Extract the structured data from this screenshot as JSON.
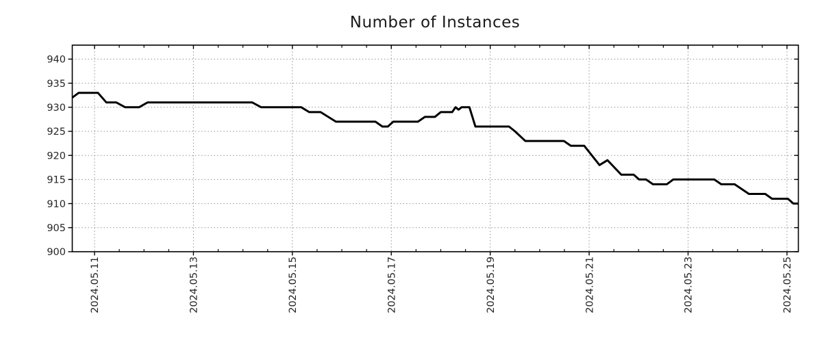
{
  "chart_data": {
    "type": "line",
    "title": "Number of Instances",
    "legend": "none",
    "grid": "dotted",
    "x_axis": {
      "unit": "days since 2024.05.11",
      "tick_labels": [
        "2024.05.11",
        "2024.05.13",
        "2024.05.15",
        "2024.05.17",
        "2024.05.19",
        "2024.05.21",
        "2024.05.23",
        "2024.05.25"
      ],
      "tick_days": [
        0,
        2,
        4,
        6,
        8,
        10,
        12,
        14
      ],
      "minor_tick_interval_days": 0.5,
      "range_days": [
        -0.45,
        14.23
      ]
    },
    "y_axis": {
      "ticks": [
        900,
        905,
        910,
        915,
        920,
        925,
        930,
        935,
        940
      ],
      "range": [
        900,
        942.9
      ]
    },
    "series": [
      {
        "name": "Number of Instances",
        "points_day_value": [
          [
            -0.45,
            932
          ],
          [
            -0.32,
            933
          ],
          [
            0.07,
            933
          ],
          [
            0.24,
            931
          ],
          [
            0.44,
            931
          ],
          [
            0.62,
            930
          ],
          [
            0.9,
            930
          ],
          [
            1.07,
            931
          ],
          [
            3.19,
            931
          ],
          [
            3.37,
            930
          ],
          [
            4.18,
            930
          ],
          [
            4.34,
            929
          ],
          [
            4.57,
            929
          ],
          [
            4.88,
            927
          ],
          [
            5.68,
            927
          ],
          [
            5.82,
            926
          ],
          [
            5.93,
            926
          ],
          [
            6.04,
            927
          ],
          [
            6.54,
            927
          ],
          [
            6.68,
            928
          ],
          [
            6.88,
            928
          ],
          [
            7.0,
            929
          ],
          [
            7.23,
            929
          ],
          [
            7.3,
            930
          ],
          [
            7.36,
            929.5
          ],
          [
            7.42,
            930
          ],
          [
            7.58,
            930
          ],
          [
            7.7,
            926
          ],
          [
            8.38,
            926
          ],
          [
            8.5,
            925
          ],
          [
            8.71,
            923
          ],
          [
            9.49,
            923
          ],
          [
            9.63,
            922
          ],
          [
            9.9,
            922
          ],
          [
            10.21,
            918
          ],
          [
            10.37,
            919
          ],
          [
            10.65,
            916
          ],
          [
            10.9,
            916
          ],
          [
            11.01,
            915
          ],
          [
            11.15,
            915
          ],
          [
            11.29,
            914
          ],
          [
            11.57,
            914
          ],
          [
            11.7,
            915
          ],
          [
            12.53,
            915
          ],
          [
            12.67,
            914
          ],
          [
            12.94,
            914
          ],
          [
            13.23,
            912
          ],
          [
            13.56,
            912
          ],
          [
            13.7,
            911
          ],
          [
            14.02,
            911
          ],
          [
            14.13,
            910
          ],
          [
            14.23,
            910
          ]
        ]
      }
    ]
  },
  "colors": {
    "background": "#ffffff",
    "line": "#000000",
    "frame": "#000000",
    "grid": "#909090",
    "tick": "#000000",
    "label_text": "#262626",
    "title_text": "#1a1a1a"
  }
}
